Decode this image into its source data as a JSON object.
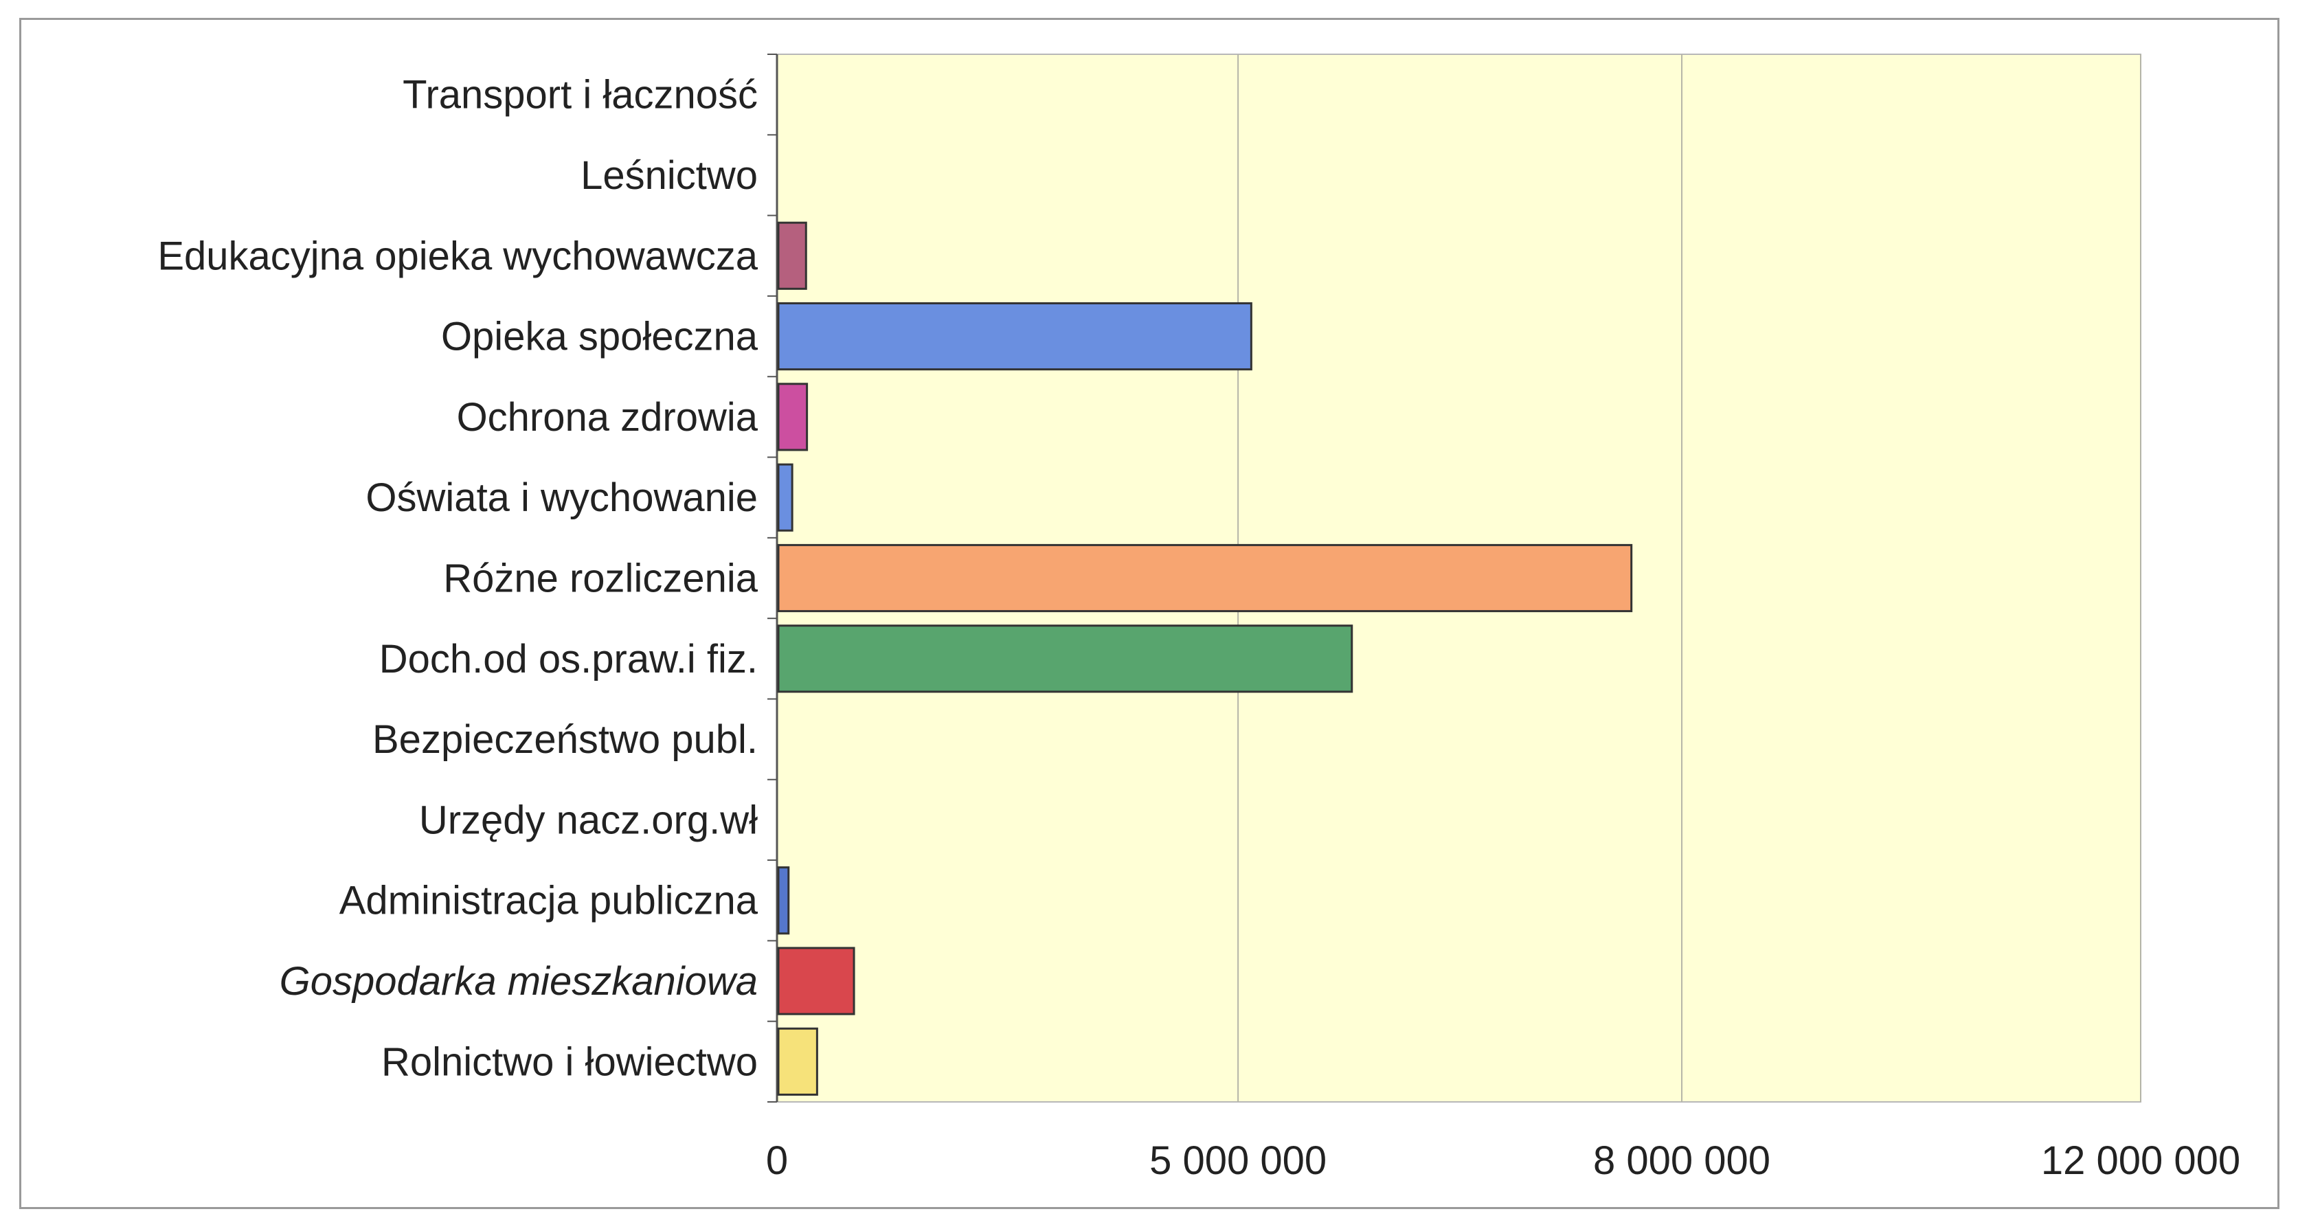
{
  "chart_data": {
    "type": "bar",
    "orientation": "horizontal",
    "title": "",
    "xlabel": "",
    "ylabel": "",
    "categories": [
      "Transport i łaczność",
      "Leśnictwo",
      "Edukacyjna opieka wychowawcza",
      "Opieka społeczna",
      "Ochrona zdrowia",
      "Oświata i wychowanie",
      "Różne rozliczenia",
      "Doch.od os.praw.i fiz.",
      "Bezpieczeństwo publ.",
      "Urzędy nacz.org.wł",
      "Administracja publiczna",
      "Gospodarka mieszkaniowa",
      "Rolnictwo i łowiectwo"
    ],
    "italic_categories": [
      "Gospodarka mieszkaniowa"
    ],
    "values": [
      0,
      0,
      300000,
      5080000,
      310000,
      150000,
      7650000,
      5760000,
      0,
      0,
      110000,
      820000,
      420000
    ],
    "colors": [
      "#5b7fd1",
      "#5b7fd1",
      "#b5607e",
      "#6a8fe0",
      "#cc4fa0",
      "#6a8fe0",
      "#f7a571",
      "#58a56e",
      "#5b7fd1",
      "#5b7fd1",
      "#5577cc",
      "#d9474d",
      "#f6e27a"
    ],
    "x_ticks": [
      0,
      5000000,
      8000000,
      12000000
    ],
    "x_tick_labels": [
      "0",
      "5 000 000",
      "8 000 000",
      "12 000 000"
    ],
    "xlim": [
      0,
      12000000
    ],
    "grid": "vertical",
    "legend": "none",
    "plot_background": "#ffffd6",
    "bar_edge_color": "#333333"
  }
}
